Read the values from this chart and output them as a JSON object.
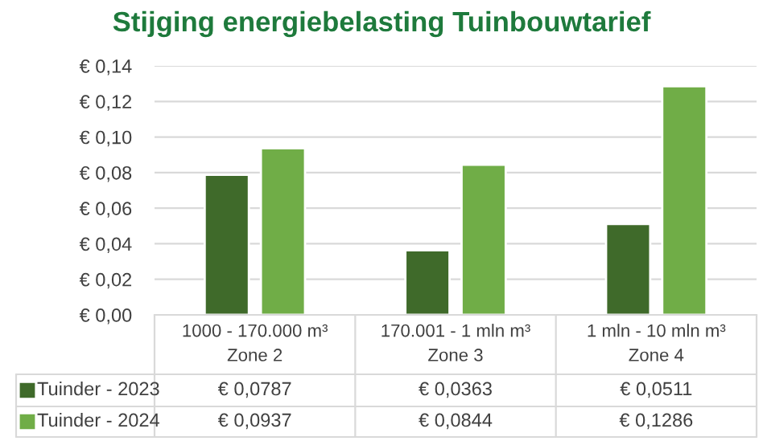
{
  "chart_data": {
    "type": "bar",
    "title": "Stijging energiebelasting Tuinbouwtarief",
    "categories": [
      "1000 - 170.000 m³\nZone 2",
      "170.001 - 1 mln m³\nZone 3",
      "1 mln - 10 mln m³\nZone 4"
    ],
    "series": [
      {
        "name": "Tuinder - 2023",
        "color": "#3f6a2a",
        "values": [
          0.0787,
          0.0363,
          0.0511
        ],
        "value_labels": [
          "€ 0,0787",
          "€ 0,0363",
          "€ 0,0511"
        ]
      },
      {
        "name": "Tuinder - 2024",
        "color": "#70ad47",
        "values": [
          0.0937,
          0.0844,
          0.1286
        ],
        "value_labels": [
          "€ 0,0937",
          "€ 0,0844",
          "€ 0,1286"
        ]
      }
    ],
    "ylim": [
      0,
      0.14
    ],
    "yticks": [
      {
        "value": 0,
        "label": "€ 0,00"
      },
      {
        "value": 0.02,
        "label": "€ 0,02"
      },
      {
        "value": 0.04,
        "label": "€ 0,04"
      },
      {
        "value": 0.06,
        "label": "€ 0,06"
      },
      {
        "value": 0.08,
        "label": "€ 0,08"
      },
      {
        "value": 0.1,
        "label": "€ 0,10"
      },
      {
        "value": 0.12,
        "label": "€ 0,12"
      },
      {
        "value": 0.14,
        "label": "€ 0,14"
      }
    ],
    "grid": "y",
    "legend": "bottom"
  }
}
